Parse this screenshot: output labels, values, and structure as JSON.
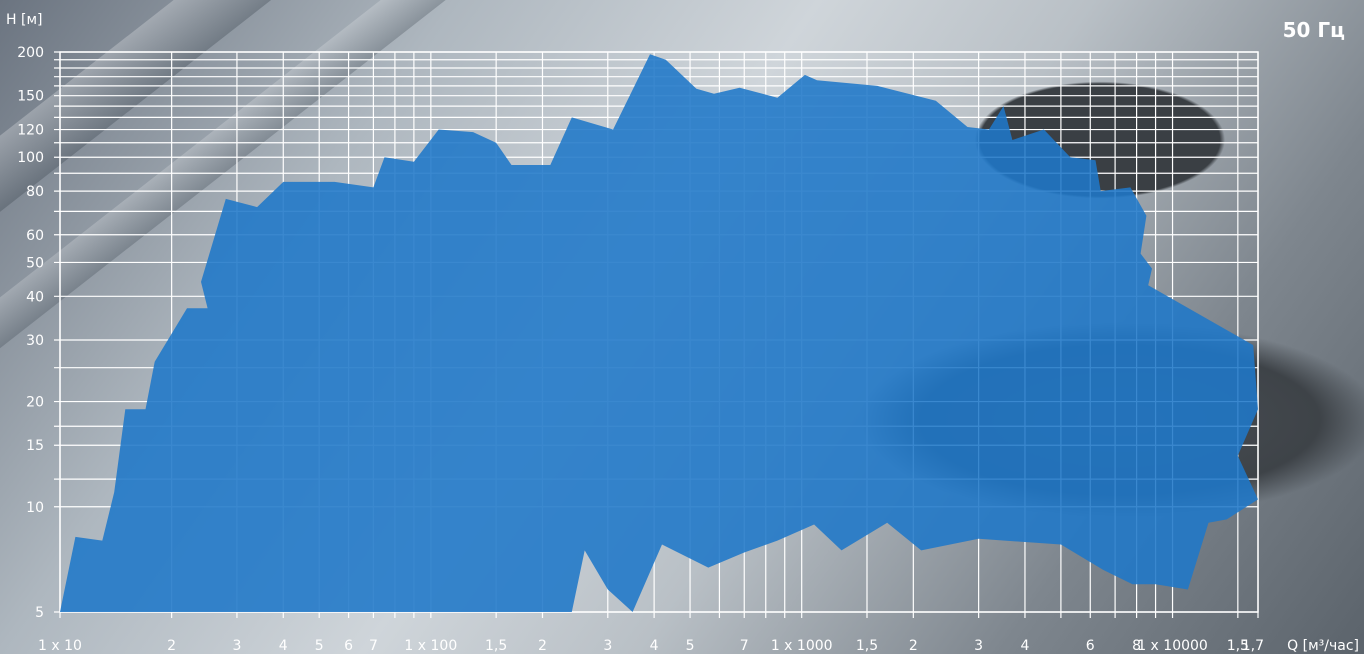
{
  "chart_data": {
    "type": "area",
    "title": "50 Гц",
    "ylabel": "H [м]",
    "xlabel": "Q [м³/час]",
    "x_scale": "log",
    "y_scale": "log",
    "xlim": [
      10,
      17000
    ],
    "ylim": [
      5,
      200
    ],
    "grid": true,
    "fill_color": "#1f78c8",
    "grid_color": "#ffffff",
    "x_ticks": [
      {
        "value": 10,
        "label": "1 x 10"
      },
      {
        "value": 20,
        "label": "2"
      },
      {
        "value": 30,
        "label": "3"
      },
      {
        "value": 40,
        "label": "4"
      },
      {
        "value": 50,
        "label": "5"
      },
      {
        "value": 60,
        "label": "6"
      },
      {
        "value": 70,
        "label": "7"
      },
      {
        "value": 100,
        "label": "1 x 100"
      },
      {
        "value": 150,
        "label": "1,5"
      },
      {
        "value": 200,
        "label": "2"
      },
      {
        "value": 300,
        "label": "3"
      },
      {
        "value": 400,
        "label": "4"
      },
      {
        "value": 500,
        "label": "5"
      },
      {
        "value": 700,
        "label": "7"
      },
      {
        "value": 1000,
        "label": "1 x 1000"
      },
      {
        "value": 1500,
        "label": "1,5"
      },
      {
        "value": 2000,
        "label": "2"
      },
      {
        "value": 3000,
        "label": "3"
      },
      {
        "value": 4000,
        "label": "4"
      },
      {
        "value": 6000,
        "label": "6"
      },
      {
        "value": 8000,
        "label": "8"
      },
      {
        "value": 10000,
        "label": "1 x 10000"
      },
      {
        "value": 15000,
        "label": "1,5"
      },
      {
        "value": 17000,
        "label": "1,7"
      }
    ],
    "x_minor_grid": [
      80,
      90,
      600,
      800,
      900,
      5000,
      7000,
      9000
    ],
    "y_ticks": [
      5,
      10,
      15,
      20,
      30,
      40,
      50,
      60,
      80,
      100,
      120,
      150,
      200
    ],
    "y_minor_grid": [
      12,
      17,
      25,
      70,
      90,
      110,
      130,
      140,
      160,
      170,
      180,
      190
    ],
    "envelope": [
      [
        10,
        5
      ],
      [
        11,
        8.2
      ],
      [
        13,
        8
      ],
      [
        14,
        11
      ],
      [
        15,
        19
      ],
      [
        17,
        19
      ],
      [
        18,
        26
      ],
      [
        22,
        37
      ],
      [
        25,
        37
      ],
      [
        24,
        44
      ],
      [
        28,
        76
      ],
      [
        34,
        72
      ],
      [
        40,
        85
      ],
      [
        55,
        85
      ],
      [
        70,
        82
      ],
      [
        75,
        100
      ],
      [
        90,
        97
      ],
      [
        105,
        120
      ],
      [
        130,
        118
      ],
      [
        150,
        110
      ],
      [
        165,
        95
      ],
      [
        210,
        95
      ],
      [
        240,
        130
      ],
      [
        310,
        120
      ],
      [
        390,
        197
      ],
      [
        430,
        190
      ],
      [
        520,
        157
      ],
      [
        580,
        152
      ],
      [
        680,
        158
      ],
      [
        860,
        148
      ],
      [
        1020,
        172
      ],
      [
        1100,
        166
      ],
      [
        1600,
        160
      ],
      [
        2300,
        145
      ],
      [
        2800,
        122
      ],
      [
        3200,
        120
      ],
      [
        3500,
        140
      ],
      [
        3700,
        112
      ],
      [
        4500,
        120
      ],
      [
        5300,
        100
      ],
      [
        6200,
        98
      ],
      [
        6400,
        80
      ],
      [
        7700,
        82
      ],
      [
        8500,
        68
      ],
      [
        8200,
        53
      ],
      [
        8800,
        48
      ],
      [
        8600,
        43
      ],
      [
        16500,
        29
      ],
      [
        17000,
        19
      ],
      [
        15000,
        14
      ],
      [
        17000,
        10.5
      ],
      [
        14000,
        9.2
      ],
      [
        12500,
        9.0
      ],
      [
        11000,
        5.8
      ],
      [
        9000,
        6.0
      ],
      [
        7800,
        6.0
      ],
      [
        6500,
        6.6
      ],
      [
        5000,
        7.8
      ],
      [
        3000,
        8.1
      ],
      [
        2100,
        7.5
      ],
      [
        1700,
        9.0
      ],
      [
        1280,
        7.5
      ],
      [
        1080,
        8.9
      ],
      [
        860,
        8.0
      ],
      [
        700,
        7.4
      ],
      [
        560,
        6.7
      ],
      [
        420,
        7.8
      ],
      [
        350,
        5.0
      ],
      [
        300,
        5.8
      ],
      [
        260,
        7.5
      ],
      [
        240,
        5
      ]
    ]
  }
}
